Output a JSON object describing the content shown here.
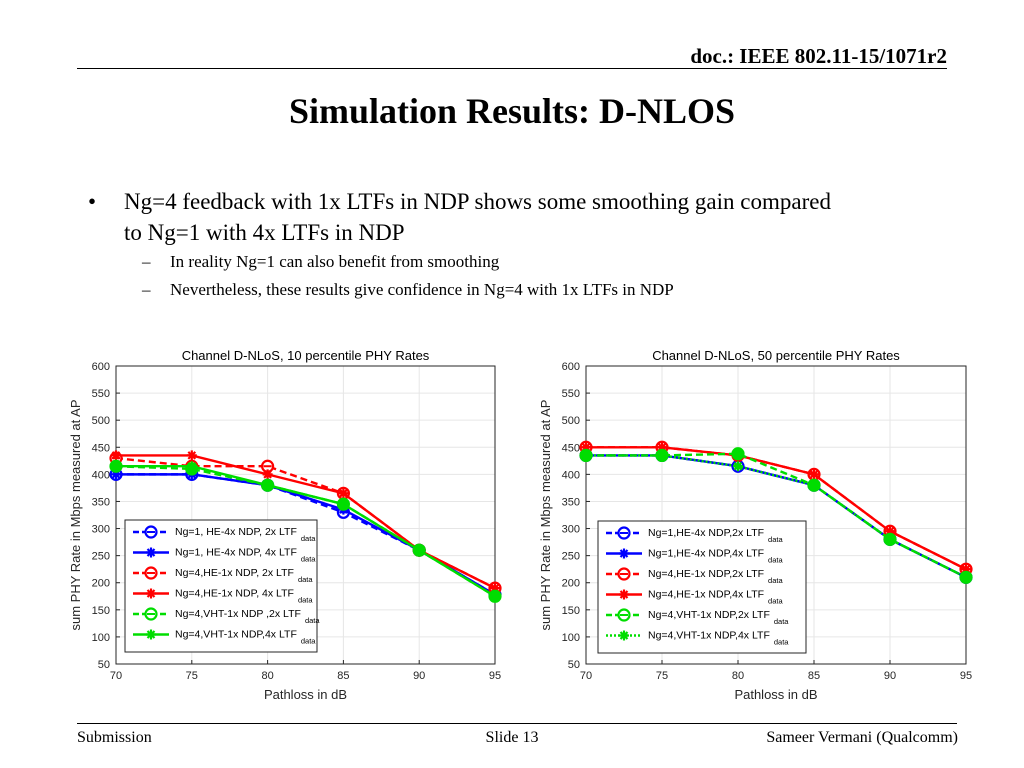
{
  "header": {
    "doc_id": "doc.: IEEE 802.11-15/1071r2"
  },
  "slide": {
    "title": "Simulation Results: D-NLOS",
    "bullet_mark": "•",
    "sub_mark": "–",
    "bullets": [
      {
        "text_line1": "Ng=4 feedback with 1x LTFs in NDP shows some smoothing gain compared",
        "text_line2": "to Ng=1 with 4x LTFs in NDP",
        "subs": [
          "In reality Ng=1 can also benefit from smoothing",
          "Nevertheless, these results give confidence in Ng=4 with 1x LTFs in NDP"
        ]
      }
    ]
  },
  "footer": {
    "left": "Submission",
    "center": "Slide 13",
    "right": "Sameer Vermani (Qualcomm)"
  },
  "chart_data": [
    {
      "type": "line",
      "title": "Channel D-NLoS, 10 percentile PHY Rates",
      "xlabel": "Pathloss in dB",
      "ylabel": "sum PHY Rate in Mbps measured at AP",
      "xlim": [
        70,
        95
      ],
      "ylim": [
        50,
        600
      ],
      "xticks": [
        70,
        75,
        80,
        85,
        90,
        95
      ],
      "yticks": [
        50,
        100,
        150,
        200,
        250,
        300,
        350,
        400,
        450,
        500,
        550,
        600
      ],
      "grid": true,
      "legend_position": "lower-left",
      "x": [
        70,
        75,
        80,
        85,
        90,
        95
      ],
      "series": [
        {
          "name": "Ng=1, HE-4x NDP, 2x LTF",
          "sub": "data",
          "color": "#0000ff",
          "dash": true,
          "marker": "circle-line",
          "values": [
            400,
            400,
            380,
            330,
            260,
            178
          ]
        },
        {
          "name": "Ng=1, HE-4x NDP, 4x LTF",
          "sub": "data",
          "color": "#0000ff",
          "dash": false,
          "marker": "star",
          "values": [
            400,
            400,
            380,
            335,
            260,
            178
          ]
        },
        {
          "name": "Ng=4,HE-1x NDP, 2x LTF",
          "sub": "data",
          "color": "#ff0000",
          "dash": true,
          "marker": "circle-line",
          "values": [
            430,
            415,
            415,
            365,
            260,
            190
          ]
        },
        {
          "name": "Ng=4,HE-1x NDP, 4x LTF",
          "sub": "data",
          "color": "#ff0000",
          "dash": false,
          "marker": "star",
          "values": [
            435,
            435,
            400,
            365,
            260,
            190
          ]
        },
        {
          "name": "Ng=4,VHT-1x NDP ,2x LTF",
          "sub": "data",
          "color": "#00dd00",
          "dash": true,
          "marker": "circle",
          "values": [
            415,
            410,
            380,
            345,
            260,
            175
          ]
        },
        {
          "name": "Ng=4,VHT-1x NDP,4x LTF",
          "sub": "data",
          "color": "#00dd00",
          "dash": false,
          "marker": "star",
          "values": [
            415,
            415,
            380,
            345,
            260,
            175
          ]
        }
      ]
    },
    {
      "type": "line",
      "title": "Channel D-NLoS, 50 percentile PHY Rates",
      "xlabel": "Pathloss in dB",
      "ylabel": "sum PHY Rate in Mbps measured at AP",
      "xlim": [
        70,
        95
      ],
      "ylim": [
        50,
        600
      ],
      "xticks": [
        70,
        75,
        80,
        85,
        90,
        95
      ],
      "yticks": [
        50,
        100,
        150,
        200,
        250,
        300,
        350,
        400,
        450,
        500,
        550,
        600
      ],
      "grid": true,
      "legend_position": "lower-right",
      "x": [
        70,
        75,
        80,
        85,
        90,
        95
      ],
      "series": [
        {
          "name": "Ng=1,HE-4x NDP,2x LTF",
          "sub": "data",
          "color": "#0000ff",
          "dash": true,
          "marker": "circle-line",
          "values": [
            435,
            435,
            415,
            380,
            280,
            210
          ]
        },
        {
          "name": "Ng=1,HE-4x NDP,4x LTF",
          "sub": "data",
          "color": "#0000ff",
          "dash": false,
          "marker": "star",
          "values": [
            435,
            435,
            415,
            380,
            280,
            210
          ]
        },
        {
          "name": "Ng=4,HE-1x NDP,2x LTF",
          "sub": "data",
          "color": "#ff0000",
          "dash": true,
          "marker": "circle-line",
          "values": [
            450,
            450,
            435,
            400,
            295,
            225
          ]
        },
        {
          "name": "Ng=4,HE-1x NDP,4x LTF",
          "sub": "data",
          "color": "#ff0000",
          "dash": false,
          "marker": "star",
          "values": [
            450,
            450,
            435,
            400,
            295,
            225
          ]
        },
        {
          "name": "Ng=4,VHT-1x NDP,2x LTF",
          "sub": "data",
          "color": "#00dd00",
          "dash": true,
          "marker": "circle",
          "values": [
            435,
            435,
            438,
            380,
            280,
            210
          ]
        },
        {
          "name": "Ng=4,VHT-1x NDP,4x LTF",
          "sub": "data",
          "color": "#00dd00",
          "dash": "dot",
          "marker": "star",
          "values": [
            435,
            435,
            415,
            380,
            280,
            210
          ]
        }
      ]
    }
  ]
}
